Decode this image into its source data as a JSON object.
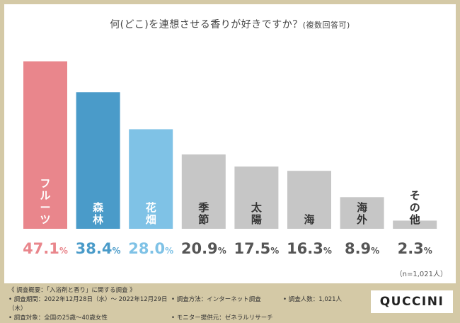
{
  "chart_data": {
    "type": "bar",
    "title": "何(どこ)を連想させる香りが好きですか？",
    "title_note": "(複数回答可)",
    "categories": [
      "フルーツ",
      "森林",
      "花畑",
      "季節",
      "太陽",
      "海",
      "海外",
      "その他"
    ],
    "values": [
      47.1,
      38.4,
      28.0,
      20.9,
      17.5,
      16.3,
      8.9,
      2.3
    ],
    "value_labels": [
      "47.1",
      "38.4",
      "28.0",
      "20.9",
      "17.5",
      "16.3",
      "8.9",
      "2.3"
    ],
    "unit": "%",
    "ylim": [
      0,
      50
    ],
    "sample_size": "（n=1,021人）"
  },
  "colors": {
    "bars": [
      "#e9868c",
      "#4a9bc9",
      "#7fc2e6",
      "#c6c6c6",
      "#c6c6c6",
      "#c6c6c6",
      "#c6c6c6",
      "#c6c6c6"
    ],
    "bar_text": [
      "#ffffff",
      "#ffffff",
      "#ffffff",
      "#333333",
      "#333333",
      "#333333",
      "#333333",
      "#333333"
    ],
    "value_text": [
      "#e9868c",
      "#4a9bc9",
      "#7fc2e6",
      "#555555",
      "#555555",
      "#555555",
      "#555555",
      "#555555"
    ]
  },
  "footer": {
    "survey_title": "《 調査概要：「入浴剤と香り」に関する調査 》",
    "period": "• 調査期間：2022年12月28日（水）〜 2022年12月29日（木）",
    "method": "• 調査方法：インターネット調査",
    "count": "• 調査人数：1,021人",
    "target": "• 調査対象：全国の25歳〜40歳女性",
    "provider": "• モニター提供元：ゼネラルリサーチ"
  },
  "logo": "QUCCINI"
}
